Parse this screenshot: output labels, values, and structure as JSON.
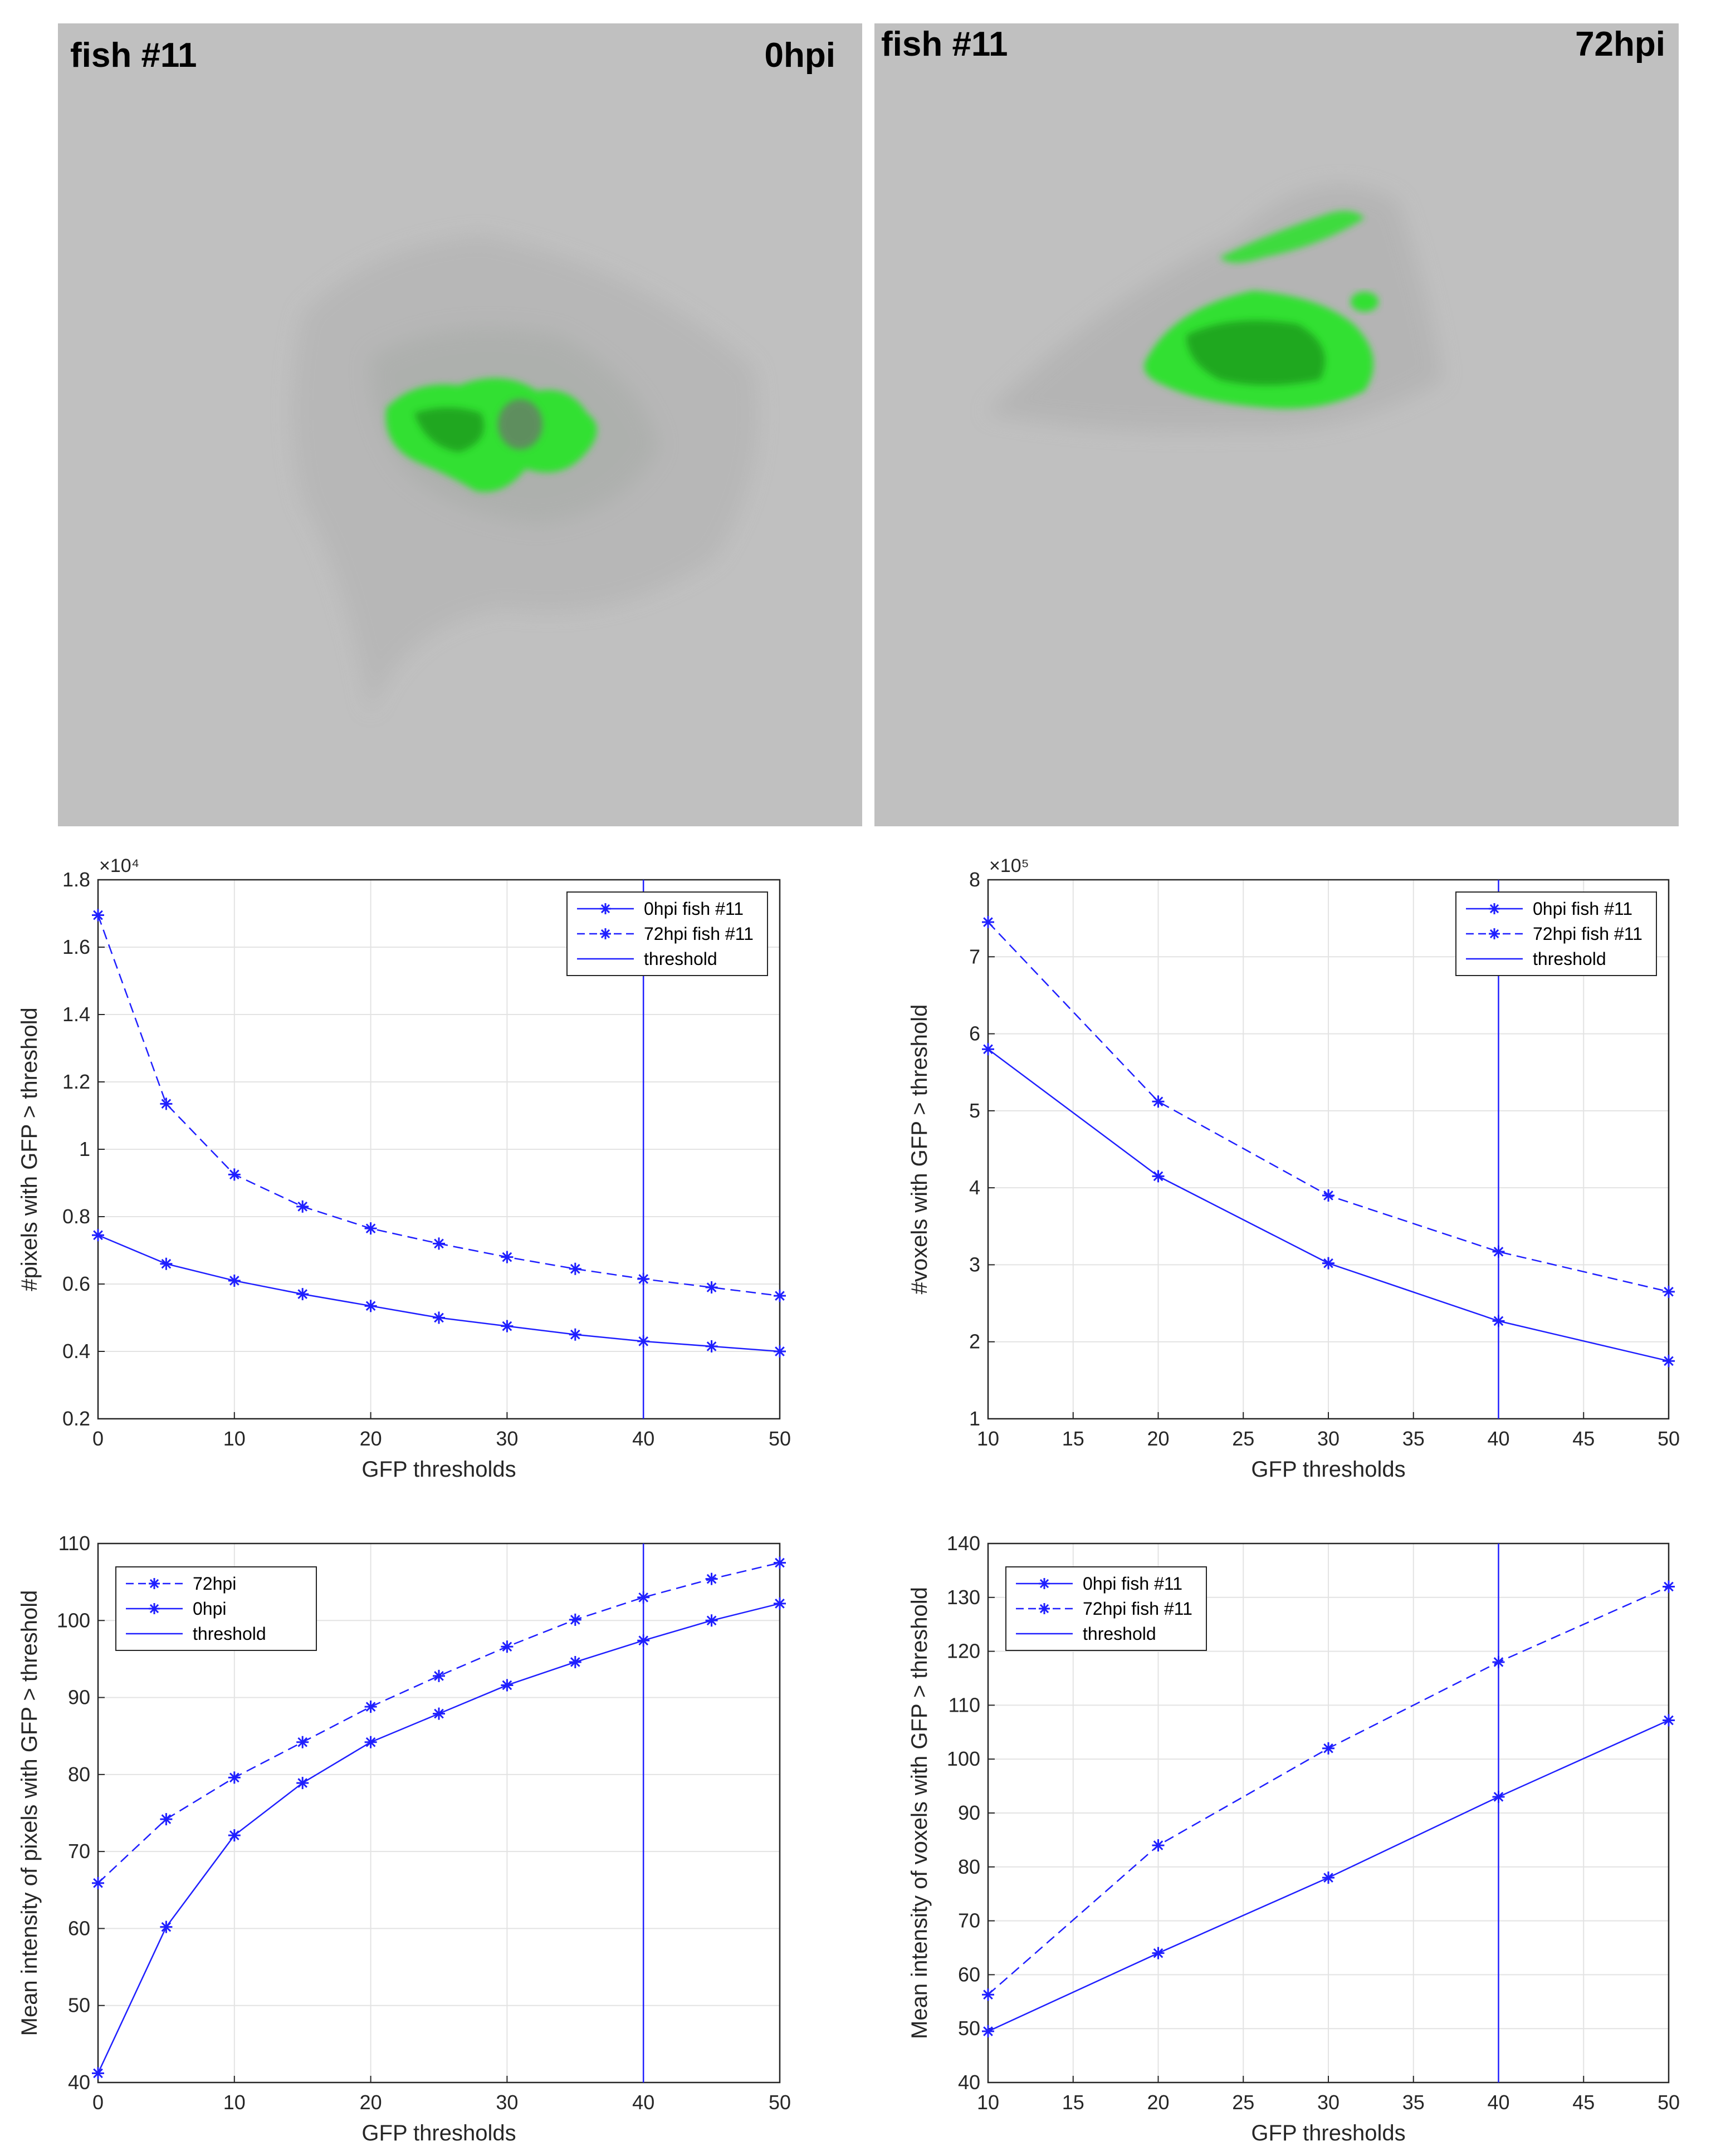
{
  "images": [
    {
      "fish_label": "fish #11",
      "time_label": "0hpi"
    },
    {
      "fish_label": "fish #11",
      "time_label": "72hpi"
    }
  ],
  "colors": {
    "series": "#1f1fff",
    "panel_bg": "#c0c0c0",
    "grid": "#e3e3e3",
    "axis": "#262626",
    "gfp": "#2fe02f"
  },
  "chart_data": [
    {
      "type": "line",
      "xlabel": "GFP thresholds",
      "ylabel": "#pixels with GFP > threshold",
      "exponent_label": "×10⁴",
      "xlim": [
        0,
        50
      ],
      "ylim": [
        0.2,
        1.8
      ],
      "xticks": [
        "0",
        "10",
        "20",
        "30",
        "40",
        "50"
      ],
      "yticks": [
        "0.2",
        "0.4",
        "0.6",
        "0.8",
        "1",
        "1.2",
        "1.4",
        "1.6",
        "1.8"
      ],
      "x": [
        0,
        5,
        10,
        15,
        20,
        25,
        30,
        35,
        40,
        45,
        50
      ],
      "series": [
        {
          "name": "0hpi fish #11",
          "style": "solid",
          "values": [
            0.745,
            0.66,
            0.61,
            0.57,
            0.535,
            0.5,
            0.475,
            0.45,
            0.43,
            0.415,
            0.4
          ]
        },
        {
          "name": "72hpi fish #11",
          "style": "dashed",
          "values": [
            1.695,
            1.135,
            0.925,
            0.83,
            0.765,
            0.72,
            0.68,
            0.645,
            0.615,
            0.59,
            0.565
          ]
        }
      ],
      "threshold": {
        "name": "threshold",
        "x": 40
      },
      "legend_order": [
        "0hpi fish #11",
        "72hpi fish #11",
        "threshold"
      ],
      "legend": "top-right"
    },
    {
      "type": "line",
      "xlabel": "GFP thresholds",
      "ylabel": "#voxels with GFP > threshold",
      "exponent_label": "×10⁵",
      "xlim": [
        10,
        50
      ],
      "ylim": [
        1,
        8
      ],
      "xticks": [
        "10",
        "15",
        "20",
        "25",
        "30",
        "35",
        "40",
        "45",
        "50"
      ],
      "yticks": [
        "1",
        "2",
        "3",
        "4",
        "5",
        "6",
        "7",
        "8"
      ],
      "x": [
        10,
        20,
        30,
        40,
        50
      ],
      "series": [
        {
          "name": "0hpi fish #11",
          "style": "solid",
          "values": [
            5.8,
            4.15,
            3.02,
            2.27,
            1.75
          ]
        },
        {
          "name": "72hpi fish #11",
          "style": "dashed",
          "values": [
            7.45,
            5.12,
            3.9,
            3.17,
            2.65
          ]
        }
      ],
      "threshold": {
        "name": "threshold",
        "x": 40
      },
      "legend_order": [
        "0hpi fish #11",
        "72hpi fish #11",
        "threshold"
      ],
      "legend": "top-right"
    },
    {
      "type": "line",
      "xlabel": "GFP thresholds",
      "ylabel": "Mean intensity of pixels with GFP > threshold",
      "exponent_label": "",
      "xlim": [
        0,
        50
      ],
      "ylim": [
        40,
        110
      ],
      "xticks": [
        "0",
        "10",
        "20",
        "30",
        "40",
        "50"
      ],
      "yticks": [
        "40",
        "50",
        "60",
        "70",
        "80",
        "90",
        "100",
        "110"
      ],
      "x": [
        0,
        5,
        10,
        15,
        20,
        25,
        30,
        35,
        40,
        45,
        50
      ],
      "series": [
        {
          "name": "0hpi",
          "style": "solid",
          "values": [
            41.2,
            60.2,
            72.1,
            78.9,
            84.2,
            87.9,
            91.6,
            94.6,
            97.4,
            100.0,
            102.2
          ]
        },
        {
          "name": "72hpi",
          "style": "dashed",
          "values": [
            65.9,
            74.2,
            79.6,
            84.2,
            88.8,
            92.8,
            96.6,
            100.1,
            103.0,
            105.4,
            107.5
          ]
        }
      ],
      "threshold": {
        "name": "threshold",
        "x": 40
      },
      "legend_order": [
        "72hpi",
        "0hpi",
        "threshold"
      ],
      "legend": "top-left"
    },
    {
      "type": "line",
      "xlabel": "GFP thresholds",
      "ylabel": "Mean intensity of voxels with GFP > threshold",
      "exponent_label": "",
      "xlim": [
        10,
        50
      ],
      "ylim": [
        40,
        140
      ],
      "xticks": [
        "10",
        "15",
        "20",
        "25",
        "30",
        "35",
        "40",
        "45",
        "50"
      ],
      "yticks": [
        "40",
        "50",
        "60",
        "70",
        "80",
        "90",
        "100",
        "110",
        "120",
        "130",
        "140"
      ],
      "x": [
        10,
        20,
        30,
        40,
        50
      ],
      "series": [
        {
          "name": "0hpi fish #11",
          "style": "solid",
          "values": [
            49.5,
            64.0,
            78.0,
            93.0,
            107.2
          ]
        },
        {
          "name": "72hpi fish #11",
          "style": "dashed",
          "values": [
            56.3,
            84.0,
            102.0,
            118.0,
            132.0
          ]
        }
      ],
      "threshold": {
        "name": "threshold",
        "x": 40
      },
      "legend_order": [
        "0hpi fish #11",
        "72hpi fish #11",
        "threshold"
      ],
      "legend": "top-left"
    }
  ]
}
